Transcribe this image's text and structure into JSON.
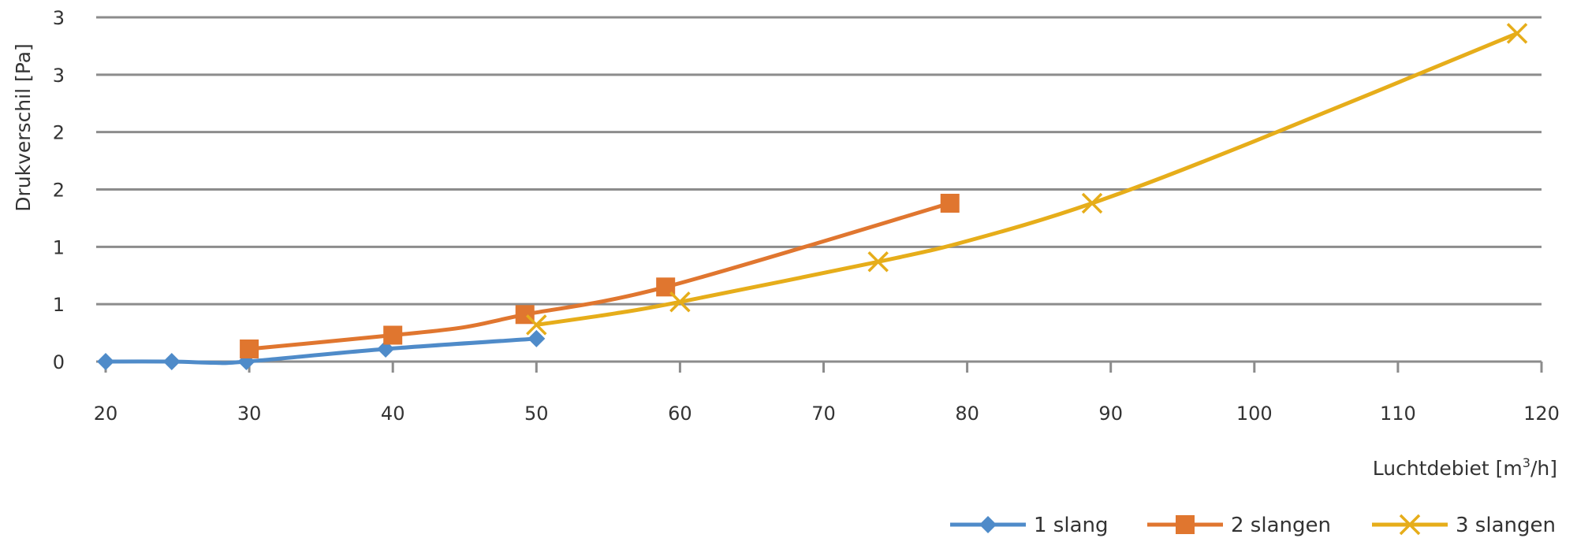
{
  "chart_data": {
    "type": "line",
    "xlabel": "Luchtdebiet [m",
    "xlabel_sup": "3",
    "xlabel_tail": "/h]",
    "ylabel": "Drukverschil [Pa]",
    "xlim": [
      20,
      120
    ],
    "ylim": [
      0,
      3
    ],
    "x_ticks": [
      20,
      30,
      40,
      50,
      60,
      70,
      80,
      90,
      100,
      110,
      120
    ],
    "x_tick_labels": [
      "20",
      "30",
      "40",
      "50",
      "60",
      "70",
      "80",
      "90",
      "100",
      "110",
      "120"
    ],
    "y_ticks": [
      0,
      0.5,
      1,
      1.5,
      2,
      2.5,
      3
    ],
    "y_tick_labels": [
      "0",
      "1",
      "1",
      "2",
      "2",
      "3",
      "3"
    ],
    "grid": "horizontal",
    "legend_position": "bottom-right",
    "series": [
      {
        "name": "1 slang",
        "color": "#4f8bc9",
        "marker": "diamond",
        "points": [
          [
            20,
            0.0
          ],
          [
            24.6,
            0.0
          ],
          [
            27.5,
            -0.01
          ],
          [
            29.8,
            0.0
          ],
          [
            39.5,
            0.11
          ],
          [
            50,
            0.2
          ]
        ]
      },
      {
        "name": "2 slangen",
        "color": "#e0762f",
        "marker": "square",
        "points": [
          [
            30,
            0.11
          ],
          [
            40,
            0.23
          ],
          [
            45,
            0.3
          ],
          [
            49.2,
            0.41
          ],
          [
            59,
            0.65
          ],
          [
            78.8,
            1.38
          ]
        ]
      },
      {
        "name": "3 slangen",
        "color": "#e6ad1a",
        "marker": "x",
        "points": [
          [
            50,
            0.32
          ],
          [
            55.5,
            0.42
          ],
          [
            60,
            0.52
          ],
          [
            73.8,
            0.87
          ],
          [
            80,
            1.05
          ],
          [
            88.7,
            1.38
          ],
          [
            100,
            1.92
          ],
          [
            118.3,
            2.86
          ]
        ]
      }
    ]
  }
}
